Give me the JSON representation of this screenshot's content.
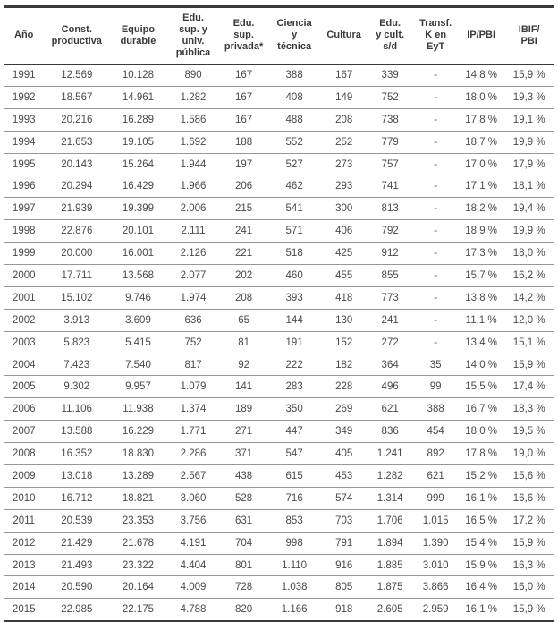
{
  "colors": {
    "background": "#ffffff",
    "text": "#4a4a4a",
    "header_text": "#3a3a3a",
    "rule_heavy": "#3a3a3a",
    "rule_light": "#979797"
  },
  "chart_data": {
    "type": "table",
    "title": "",
    "columns": [
      "Año",
      "Const.\nproductiva",
      "Equipo\ndurable",
      "Edu.\nsup. y\nuniv.\npública",
      "Edu.\nsup.\nprivada*",
      "Ciencia\ny\ntécnica",
      "Cultura",
      "Edu.\ny cult.\ns/d",
      "Transf.\nK en\nEyT",
      "IP/PBI",
      "IBIF/\nPBI"
    ],
    "rows": [
      [
        "1991",
        "12.569",
        "10.128",
        "890",
        "167",
        "388",
        "167",
        "339",
        "-",
        "14,8 %",
        "15,9 %"
      ],
      [
        "1992",
        "18.567",
        "14.961",
        "1.282",
        "167",
        "408",
        "149",
        "752",
        "-",
        "18,0 %",
        "19,3 %"
      ],
      [
        "1993",
        "20.216",
        "16.289",
        "1.586",
        "167",
        "488",
        "208",
        "738",
        "-",
        "17,8 %",
        "19,1 %"
      ],
      [
        "1994",
        "21.653",
        "19.105",
        "1.692",
        "188",
        "552",
        "252",
        "779",
        "-",
        "18,7 %",
        "19,9 %"
      ],
      [
        "1995",
        "20.143",
        "15.264",
        "1.944",
        "197",
        "527",
        "273",
        "757",
        "-",
        "17,0 %",
        "17,9 %"
      ],
      [
        "1996",
        "20.294",
        "16.429",
        "1.966",
        "206",
        "462",
        "293",
        "741",
        "-",
        "17,1 %",
        "18,1 %"
      ],
      [
        "1997",
        "21.939",
        "19.399",
        "2.006",
        "215",
        "541",
        "300",
        "813",
        "-",
        "18,2 %",
        "19,4 %"
      ],
      [
        "1998",
        "22.876",
        "20.101",
        "2.111",
        "241",
        "571",
        "406",
        "792",
        "-",
        "18,9 %",
        "19,9 %"
      ],
      [
        "1999",
        "20.000",
        "16.001",
        "2.126",
        "221",
        "518",
        "425",
        "912",
        "-",
        "17,3 %",
        "18,0 %"
      ],
      [
        "2000",
        "17.711",
        "13.568",
        "2.077",
        "202",
        "460",
        "455",
        "855",
        "-",
        "15,7 %",
        "16,2 %"
      ],
      [
        "2001",
        "15.102",
        "9.746",
        "1.974",
        "208",
        "393",
        "418",
        "773",
        "-",
        "13,8 %",
        "14,2 %"
      ],
      [
        "2002",
        "3.913",
        "3.609",
        "636",
        "65",
        "144",
        "130",
        "241",
        "-",
        "11,1 %",
        "12,0 %"
      ],
      [
        "2003",
        "5.823",
        "5.415",
        "752",
        "81",
        "191",
        "152",
        "272",
        "-",
        "13,4 %",
        "15,1 %"
      ],
      [
        "2004",
        "7.423",
        "7.540",
        "817",
        "92",
        "222",
        "182",
        "364",
        "35",
        "14,0 %",
        "15,9 %"
      ],
      [
        "2005",
        "9.302",
        "9.957",
        "1.079",
        "141",
        "283",
        "228",
        "496",
        "99",
        "15,5 %",
        "17,4 %"
      ],
      [
        "2006",
        "11.106",
        "11.938",
        "1.374",
        "189",
        "350",
        "269",
        "621",
        "388",
        "16,7 %",
        "18,3 %"
      ],
      [
        "2007",
        "13.588",
        "16.229",
        "1.771",
        "271",
        "447",
        "349",
        "836",
        "454",
        "18,0 %",
        "19,5 %"
      ],
      [
        "2008",
        "16.352",
        "18.830",
        "2.286",
        "371",
        "547",
        "405",
        "1.241",
        "892",
        "17,8 %",
        "19,0 %"
      ],
      [
        "2009",
        "13.018",
        "13.289",
        "2.567",
        "438",
        "615",
        "453",
        "1.282",
        "621",
        "15,2 %",
        "15,6 %"
      ],
      [
        "2010",
        "16.712",
        "18.821",
        "3.060",
        "528",
        "716",
        "574",
        "1.314",
        "999",
        "16,1 %",
        "16,6 %"
      ],
      [
        "2011",
        "20.539",
        "23.353",
        "3.756",
        "631",
        "853",
        "703",
        "1.706",
        "1.015",
        "16,5 %",
        "17,2 %"
      ],
      [
        "2012",
        "21.429",
        "21.678",
        "4.191",
        "704",
        "998",
        "791",
        "1.894",
        "1.390",
        "15,4 %",
        "15,9 %"
      ],
      [
        "2013",
        "21.493",
        "23.322",
        "4.404",
        "801",
        "1.110",
        "916",
        "1.885",
        "3.010",
        "15,9 %",
        "16,3 %"
      ],
      [
        "2014",
        "20.590",
        "20.164",
        "4.009",
        "728",
        "1.038",
        "805",
        "1.875",
        "3.866",
        "16,4 %",
        "16,0 %"
      ],
      [
        "2015",
        "22.985",
        "22.175",
        "4.788",
        "820",
        "1.166",
        "918",
        "2.605",
        "2.959",
        "16,1 %",
        "15,9 %"
      ]
    ]
  }
}
